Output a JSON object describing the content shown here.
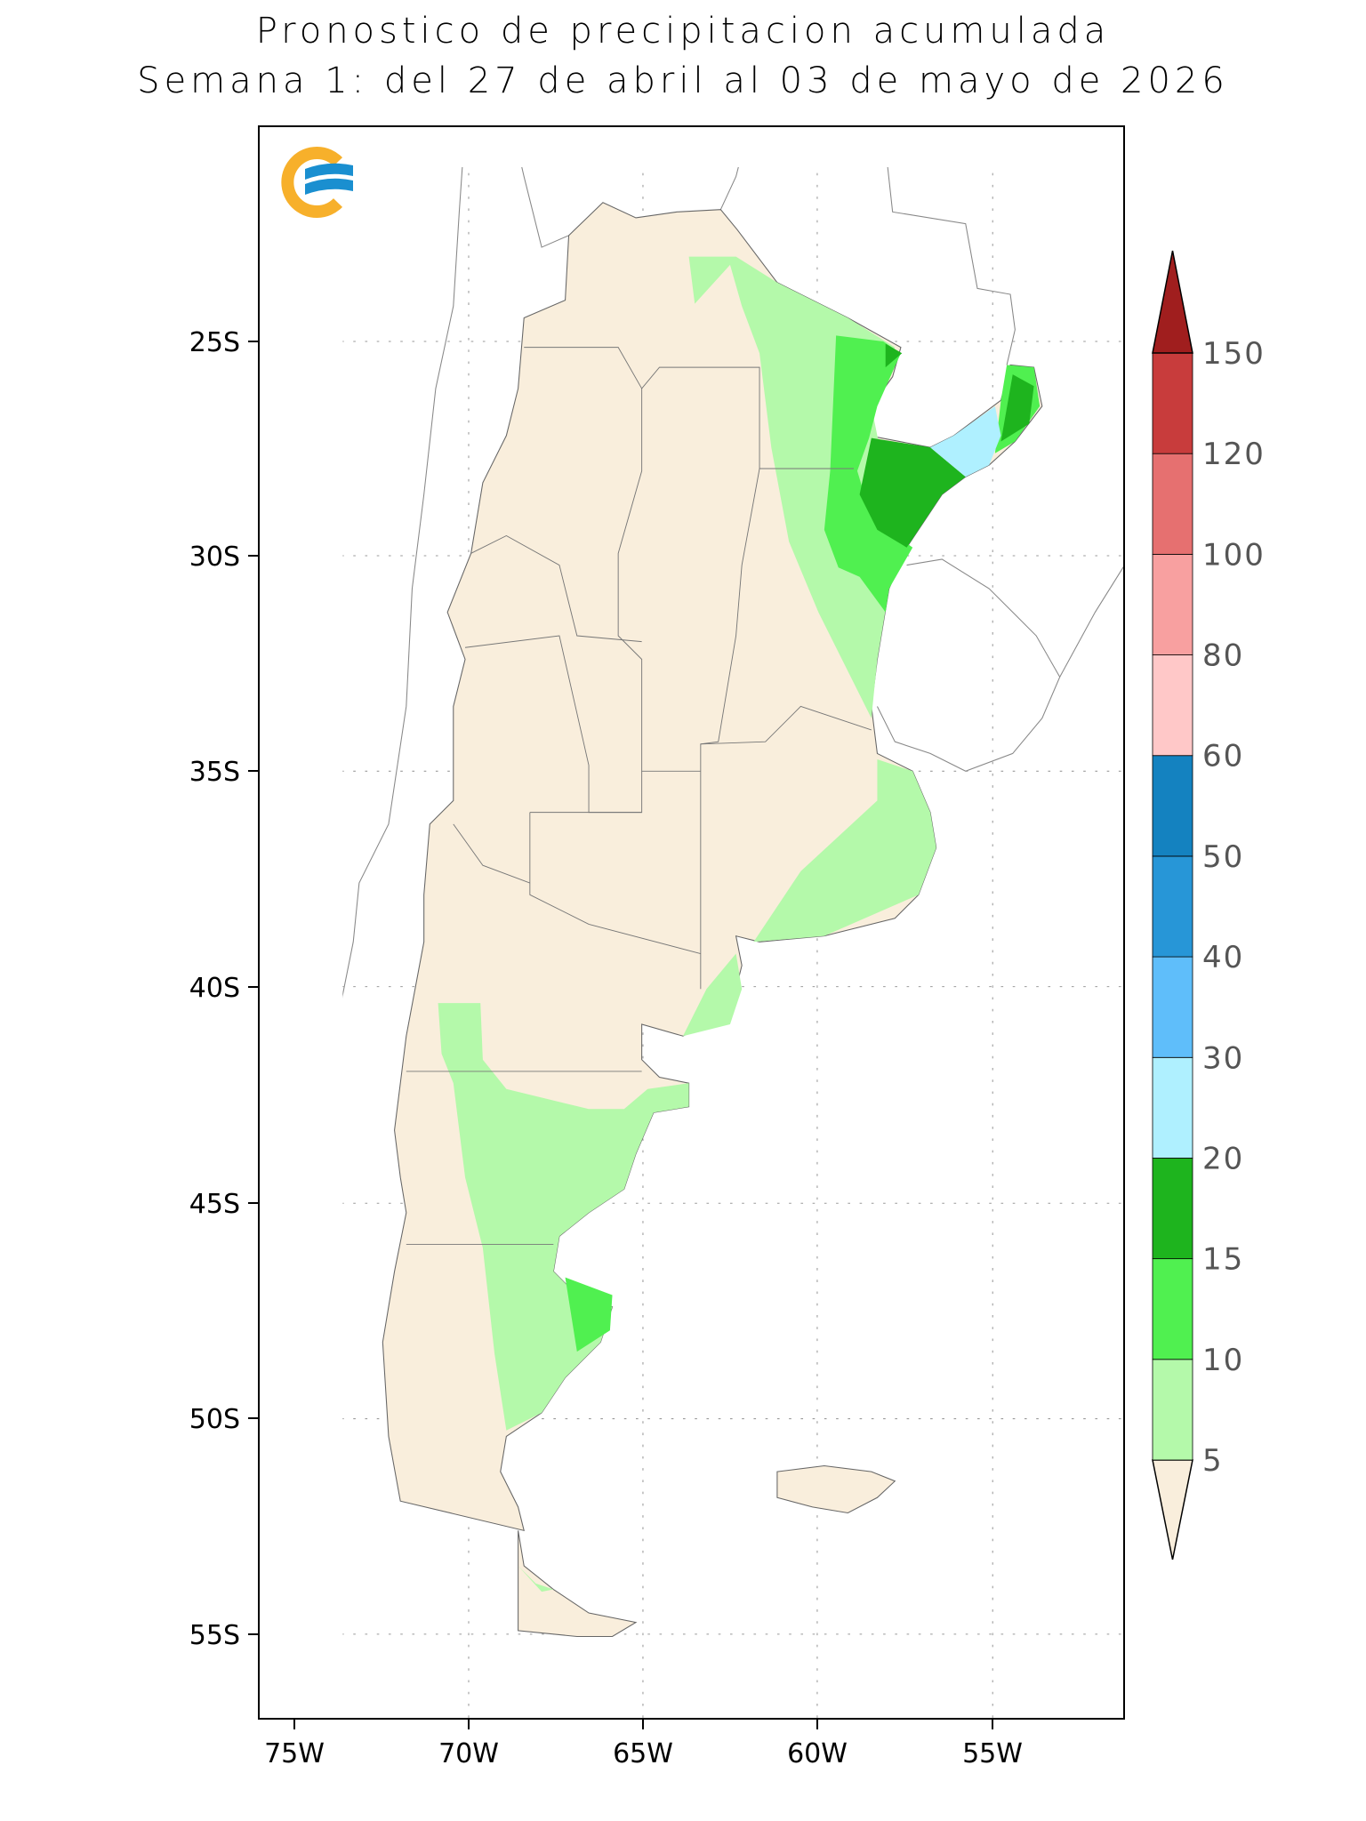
{
  "title": {
    "line1": "Pronostico de precipitacion acumulada",
    "line2": "Semana 1: del 27 de abril al 03 de mayo de 2026"
  },
  "logo": {
    "name": "logo-icon",
    "colors": {
      "ring": "#F7B02B",
      "waves": "#1A8FD0"
    }
  },
  "map": {
    "region": "Argentina",
    "lat_ticks": [
      "25S",
      "30S",
      "35S",
      "40S",
      "45S",
      "50S",
      "55S"
    ],
    "lon_ticks": [
      "75W",
      "70W",
      "65W",
      "60W",
      "55W"
    ],
    "grid": true,
    "land_color": "#F9EEDC"
  },
  "colorbar": {
    "placement": "right",
    "levels": [
      "5",
      "10",
      "15",
      "20",
      "30",
      "40",
      "50",
      "60",
      "80",
      "100",
      "120",
      "150"
    ],
    "colors": [
      "#F9EEDC",
      "#B4F9AA",
      "#50F050",
      "#1EB41E",
      "#AFF0FF",
      "#5FBEFA",
      "#2796D7",
      "#1482C0",
      "#FFC8C8",
      "#F8A0A0",
      "#E67070",
      "#C83C3C",
      "#A01E1E"
    ]
  }
}
